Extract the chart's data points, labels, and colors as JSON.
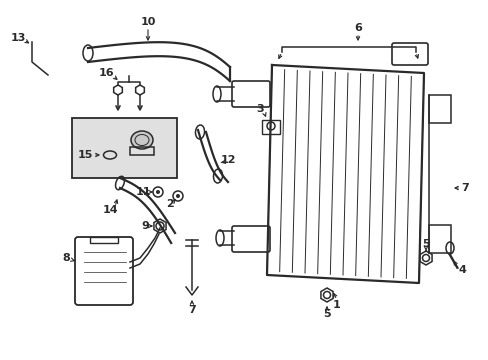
{
  "bg_color": "#ffffff",
  "line_color": "#2a2a2a",
  "lw": 1.1,
  "lw_thick": 1.6,
  "lw_thin": 0.7,
  "label_fs": 8.0,
  "fig_w": 4.89,
  "fig_h": 3.6,
  "dpi": 100
}
